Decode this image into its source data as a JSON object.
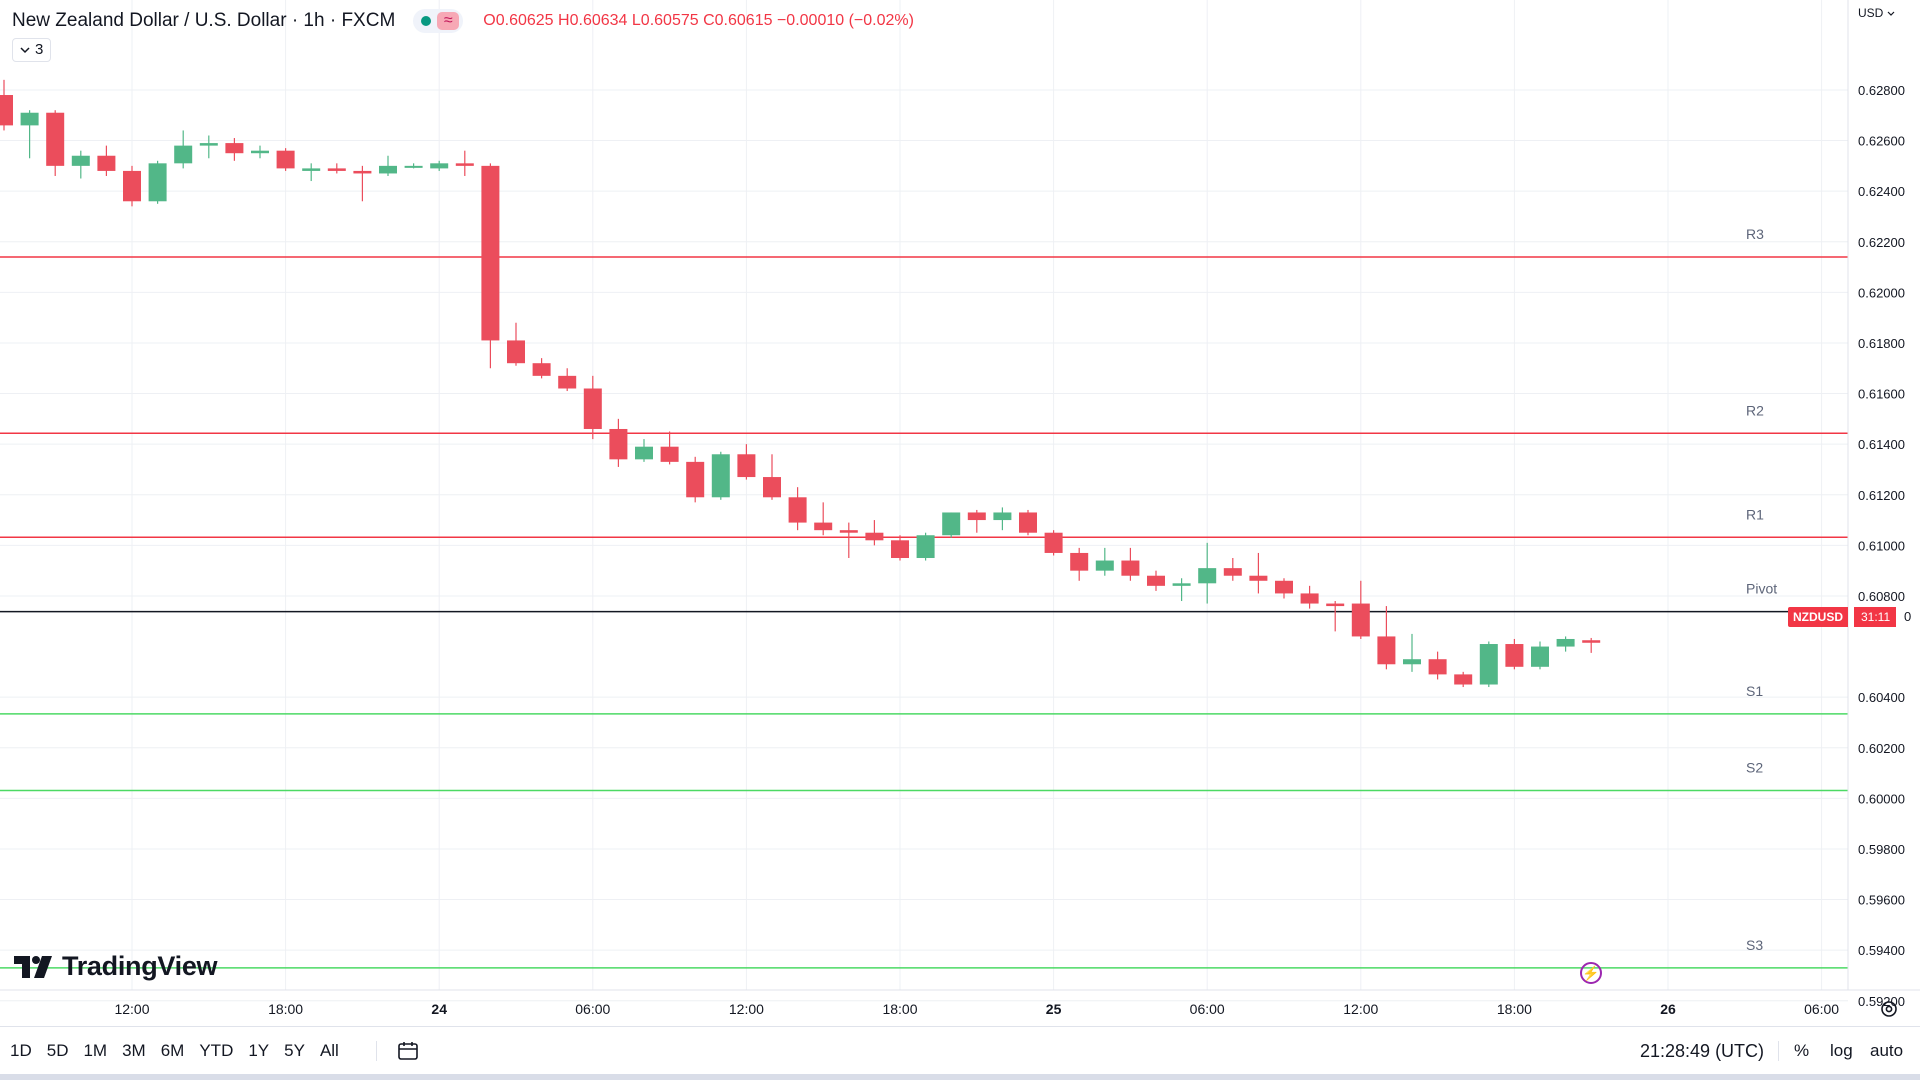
{
  "header": {
    "title": "New Zealand Dollar / U.S. Dollar · 1h · FXCM",
    "ohlc": {
      "o_label": "O",
      "o": "0.60625",
      "h_label": "H",
      "h": "0.60634",
      "l_label": "L",
      "l": "0.60575",
      "c_label": "C",
      "c": "0.60615",
      "change": "−0.00010 (−0.02%)"
    },
    "indicator_count": "3",
    "wave_glyph": "≈"
  },
  "price_axis": {
    "currency": "USD"
  },
  "price_label": {
    "symbol": "NZDUSD",
    "countdown": "31:11",
    "price_visible_tail": "0"
  },
  "watermark": "TradingView",
  "footer": {
    "timeframes": [
      "1D",
      "5D",
      "1M",
      "3M",
      "6M",
      "YTD",
      "1Y",
      "5Y",
      "All"
    ],
    "clock": "21:28:49 (UTC)",
    "percent_label": "%",
    "log_label": "log",
    "auto_label": "auto"
  },
  "colors": {
    "up": "#52b788",
    "down": "#eb4d5c",
    "resistance": "#f23645",
    "support": "#4cd964",
    "pivot": "#131722",
    "grid": "#eef0f4",
    "text": "#131722",
    "level_label": "#5d6579"
  },
  "chart_data": {
    "type": "candlestick",
    "symbol": "NZDUSD",
    "interval": "1h",
    "y_axis": {
      "ylim": [
        0.5912,
        0.6312
      ],
      "ticks": [
        "0.62800",
        "0.62600",
        "0.62400",
        "0.62200",
        "0.62000",
        "0.61800",
        "0.61600",
        "0.61400",
        "0.61200",
        "0.61000",
        "0.60800",
        "0.60400",
        "0.60200",
        "0.60000",
        "0.59800",
        "0.59600",
        "0.59400",
        "0.59200"
      ]
    },
    "x_axis": {
      "ticks": [
        {
          "hour": 12,
          "label": "12:00",
          "bold": false
        },
        {
          "hour": 18,
          "label": "18:00",
          "bold": false
        },
        {
          "hour": 24,
          "label": "24",
          "bold": true
        },
        {
          "hour": 30,
          "label": "06:00",
          "bold": false
        },
        {
          "hour": 36,
          "label": "12:00",
          "bold": false
        },
        {
          "hour": 42,
          "label": "18:00",
          "bold": false
        },
        {
          "hour": 48,
          "label": "25",
          "bold": true
        },
        {
          "hour": 54,
          "label": "06:00",
          "bold": false
        },
        {
          "hour": 60,
          "label": "12:00",
          "bold": false
        },
        {
          "hour": 66,
          "label": "18:00",
          "bold": false
        },
        {
          "hour": 72,
          "label": "26",
          "bold": true
        },
        {
          "hour": 78,
          "label": "06:00",
          "bold": false
        }
      ]
    },
    "levels": [
      {
        "name": "R3",
        "value": 0.6214,
        "kind": "resistance"
      },
      {
        "name": "R2",
        "value": 0.61443,
        "kind": "resistance"
      },
      {
        "name": "R1",
        "value": 0.61032,
        "kind": "resistance"
      },
      {
        "name": "Pivot",
        "value": 0.60738,
        "kind": "pivot"
      },
      {
        "name": "S1",
        "value": 0.60334,
        "kind": "support"
      },
      {
        "name": "S2",
        "value": 0.60031,
        "kind": "support"
      },
      {
        "name": "S3",
        "value": 0.5933,
        "kind": "support"
      }
    ],
    "candles": [
      {
        "t": 7,
        "o": 0.6278,
        "h": 0.6284,
        "l": 0.6264,
        "c": 0.6266
      },
      {
        "t": 8,
        "o": 0.6266,
        "h": 0.6272,
        "l": 0.6253,
        "c": 0.6271
      },
      {
        "t": 9,
        "o": 0.6271,
        "h": 0.6272,
        "l": 0.6246,
        "c": 0.625
      },
      {
        "t": 10,
        "o": 0.625,
        "h": 0.6256,
        "l": 0.6245,
        "c": 0.6254
      },
      {
        "t": 11,
        "o": 0.6254,
        "h": 0.6258,
        "l": 0.6246,
        "c": 0.6248
      },
      {
        "t": 12,
        "o": 0.6248,
        "h": 0.625,
        "l": 0.6234,
        "c": 0.6236
      },
      {
        "t": 13,
        "o": 0.6236,
        "h": 0.6252,
        "l": 0.6235,
        "c": 0.6251
      },
      {
        "t": 14,
        "o": 0.6251,
        "h": 0.6264,
        "l": 0.6249,
        "c": 0.6258
      },
      {
        "t": 15,
        "o": 0.6258,
        "h": 0.6262,
        "l": 0.6253,
        "c": 0.6259
      },
      {
        "t": 16,
        "o": 0.6259,
        "h": 0.6261,
        "l": 0.6252,
        "c": 0.6255
      },
      {
        "t": 17,
        "o": 0.6255,
        "h": 0.6258,
        "l": 0.6253,
        "c": 0.6256
      },
      {
        "t": 18,
        "o": 0.6256,
        "h": 0.6257,
        "l": 0.6248,
        "c": 0.6249
      },
      {
        "t": 19,
        "o": 0.6248,
        "h": 0.6251,
        "l": 0.6244,
        "c": 0.6249
      },
      {
        "t": 20,
        "o": 0.6249,
        "h": 0.6251,
        "l": 0.6247,
        "c": 0.6248
      },
      {
        "t": 21,
        "o": 0.6248,
        "h": 0.625,
        "l": 0.6236,
        "c": 0.6247
      },
      {
        "t": 22,
        "o": 0.6247,
        "h": 0.6254,
        "l": 0.6246,
        "c": 0.625
      },
      {
        "t": 23,
        "o": 0.625,
        "h": 0.6251,
        "l": 0.6249,
        "c": 0.625
      },
      {
        "t": 24,
        "o": 0.6249,
        "h": 0.6252,
        "l": 0.6248,
        "c": 0.6251
      },
      {
        "t": 25,
        "o": 0.6251,
        "h": 0.6256,
        "l": 0.6246,
        "c": 0.625
      },
      {
        "t": 26,
        "o": 0.625,
        "h": 0.6251,
        "l": 0.617,
        "c": 0.6181
      },
      {
        "t": 27,
        "o": 0.6181,
        "h": 0.6188,
        "l": 0.6171,
        "c": 0.6172
      },
      {
        "t": 28,
        "o": 0.6172,
        "h": 0.6174,
        "l": 0.6166,
        "c": 0.6167
      },
      {
        "t": 29,
        "o": 0.6167,
        "h": 0.617,
        "l": 0.6161,
        "c": 0.6162
      },
      {
        "t": 30,
        "o": 0.6162,
        "h": 0.6167,
        "l": 0.6142,
        "c": 0.6146
      },
      {
        "t": 31,
        "o": 0.6146,
        "h": 0.615,
        "l": 0.6131,
        "c": 0.6134
      },
      {
        "t": 32,
        "o": 0.6134,
        "h": 0.6142,
        "l": 0.6133,
        "c": 0.6139
      },
      {
        "t": 33,
        "o": 0.6139,
        "h": 0.6145,
        "l": 0.6132,
        "c": 0.6133
      },
      {
        "t": 34,
        "o": 0.6133,
        "h": 0.6135,
        "l": 0.6117,
        "c": 0.6119
      },
      {
        "t": 35,
        "o": 0.6119,
        "h": 0.6137,
        "l": 0.6118,
        "c": 0.6136
      },
      {
        "t": 36,
        "o": 0.6136,
        "h": 0.614,
        "l": 0.6126,
        "c": 0.6127
      },
      {
        "t": 37,
        "o": 0.6127,
        "h": 0.6136,
        "l": 0.6118,
        "c": 0.6119
      },
      {
        "t": 38,
        "o": 0.6119,
        "h": 0.6123,
        "l": 0.6106,
        "c": 0.6109
      },
      {
        "t": 39,
        "o": 0.6109,
        "h": 0.6117,
        "l": 0.6104,
        "c": 0.6106
      },
      {
        "t": 40,
        "o": 0.6106,
        "h": 0.6109,
        "l": 0.6095,
        "c": 0.6105
      },
      {
        "t": 41,
        "o": 0.6105,
        "h": 0.611,
        "l": 0.61,
        "c": 0.6102
      },
      {
        "t": 42,
        "o": 0.6102,
        "h": 0.6104,
        "l": 0.6094,
        "c": 0.6095
      },
      {
        "t": 43,
        "o": 0.6095,
        "h": 0.6105,
        "l": 0.6094,
        "c": 0.6104
      },
      {
        "t": 44,
        "o": 0.6104,
        "h": 0.6113,
        "l": 0.6103,
        "c": 0.6113
      },
      {
        "t": 45,
        "o": 0.6113,
        "h": 0.6114,
        "l": 0.6105,
        "c": 0.611
      },
      {
        "t": 46,
        "o": 0.611,
        "h": 0.6115,
        "l": 0.6106,
        "c": 0.6113
      },
      {
        "t": 47,
        "o": 0.6113,
        "h": 0.6114,
        "l": 0.6104,
        "c": 0.6105
      },
      {
        "t": 48,
        "o": 0.6105,
        "h": 0.6106,
        "l": 0.6096,
        "c": 0.6097
      },
      {
        "t": 49,
        "o": 0.6097,
        "h": 0.6099,
        "l": 0.6086,
        "c": 0.609
      },
      {
        "t": 50,
        "o": 0.609,
        "h": 0.6099,
        "l": 0.6088,
        "c": 0.6094
      },
      {
        "t": 51,
        "o": 0.6094,
        "h": 0.6099,
        "l": 0.6086,
        "c": 0.6088
      },
      {
        "t": 52,
        "o": 0.6088,
        "h": 0.609,
        "l": 0.6082,
        "c": 0.6084
      },
      {
        "t": 53,
        "o": 0.6084,
        "h": 0.6087,
        "l": 0.6078,
        "c": 0.6085
      },
      {
        "t": 54,
        "o": 0.6085,
        "h": 0.6101,
        "l": 0.6077,
        "c": 0.6091
      },
      {
        "t": 55,
        "o": 0.6091,
        "h": 0.6095,
        "l": 0.6086,
        "c": 0.6088
      },
      {
        "t": 56,
        "o": 0.6088,
        "h": 0.6097,
        "l": 0.6081,
        "c": 0.6086
      },
      {
        "t": 57,
        "o": 0.6086,
        "h": 0.6087,
        "l": 0.6079,
        "c": 0.6081
      },
      {
        "t": 58,
        "o": 0.6081,
        "h": 0.6084,
        "l": 0.6075,
        "c": 0.6077
      },
      {
        "t": 59,
        "o": 0.6077,
        "h": 0.6078,
        "l": 0.6066,
        "c": 0.6076
      },
      {
        "t": 60,
        "o": 0.6077,
        "h": 0.6086,
        "l": 0.6063,
        "c": 0.6064
      },
      {
        "t": 61,
        "o": 0.6064,
        "h": 0.6076,
        "l": 0.6051,
        "c": 0.6053
      },
      {
        "t": 62,
        "o": 0.6053,
        "h": 0.6065,
        "l": 0.605,
        "c": 0.6055
      },
      {
        "t": 63,
        "o": 0.6055,
        "h": 0.6058,
        "l": 0.6047,
        "c": 0.6049
      },
      {
        "t": 64,
        "o": 0.6049,
        "h": 0.605,
        "l": 0.6044,
        "c": 0.6045
      },
      {
        "t": 65,
        "o": 0.6045,
        "h": 0.6062,
        "l": 0.6044,
        "c": 0.6061
      },
      {
        "t": 66,
        "o": 0.6061,
        "h": 0.6063,
        "l": 0.6051,
        "c": 0.6052
      },
      {
        "t": 67,
        "o": 0.6052,
        "h": 0.6062,
        "l": 0.6051,
        "c": 0.606
      },
      {
        "t": 68,
        "o": 0.606,
        "h": 0.6064,
        "l": 0.6058,
        "c": 0.6063
      },
      {
        "t": 69,
        "o": 0.60625,
        "h": 0.60634,
        "l": 0.60575,
        "c": 0.60615
      }
    ]
  }
}
